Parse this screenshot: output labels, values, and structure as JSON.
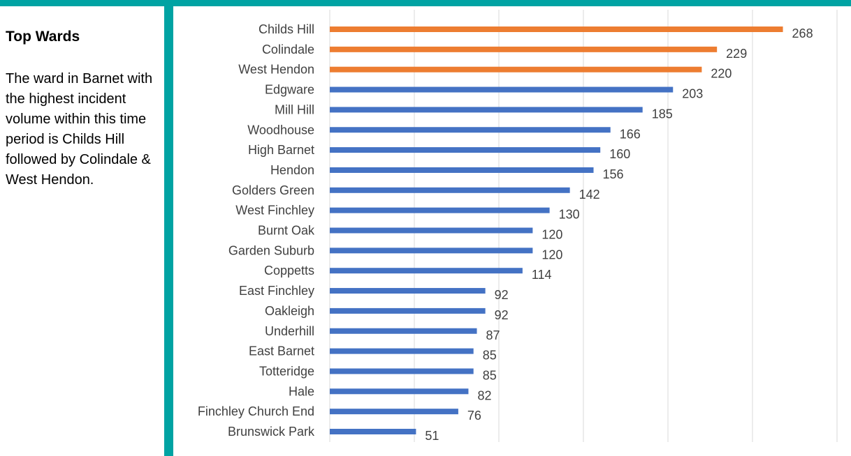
{
  "panel": {
    "title": "Top Wards",
    "text": "The ward in Barnet with the highest incident volume within this time period is Childs Hill followed by Colindale & West Hendon."
  },
  "colors": {
    "background": "#00A3A3",
    "highlight_bar": "#ED7D31",
    "normal_bar": "#4472C4",
    "gridline": "#D9D9D9"
  },
  "chart_data": {
    "type": "bar",
    "orientation": "horizontal",
    "categories": [
      "Childs Hill",
      "Colindale",
      "West Hendon",
      "Edgware",
      "Mill Hill",
      "Woodhouse",
      "High Barnet",
      "Hendon",
      "Golders Green",
      "West Finchley",
      "Burnt Oak",
      "Garden Suburb",
      "Coppetts",
      "East Finchley",
      "Oakleigh",
      "Underhill",
      "East Barnet",
      "Totteridge",
      "Hale",
      "Finchley Church End",
      "Brunswick Park"
    ],
    "values": [
      268,
      229,
      220,
      203,
      185,
      166,
      160,
      156,
      142,
      130,
      120,
      120,
      114,
      92,
      92,
      87,
      85,
      85,
      82,
      76,
      51
    ],
    "highlighted": [
      "Childs Hill",
      "Colindale",
      "West Hendon"
    ],
    "xlim": [
      0,
      300
    ],
    "grid": true,
    "data_labels": true,
    "title": "",
    "xlabel": "",
    "ylabel": ""
  }
}
